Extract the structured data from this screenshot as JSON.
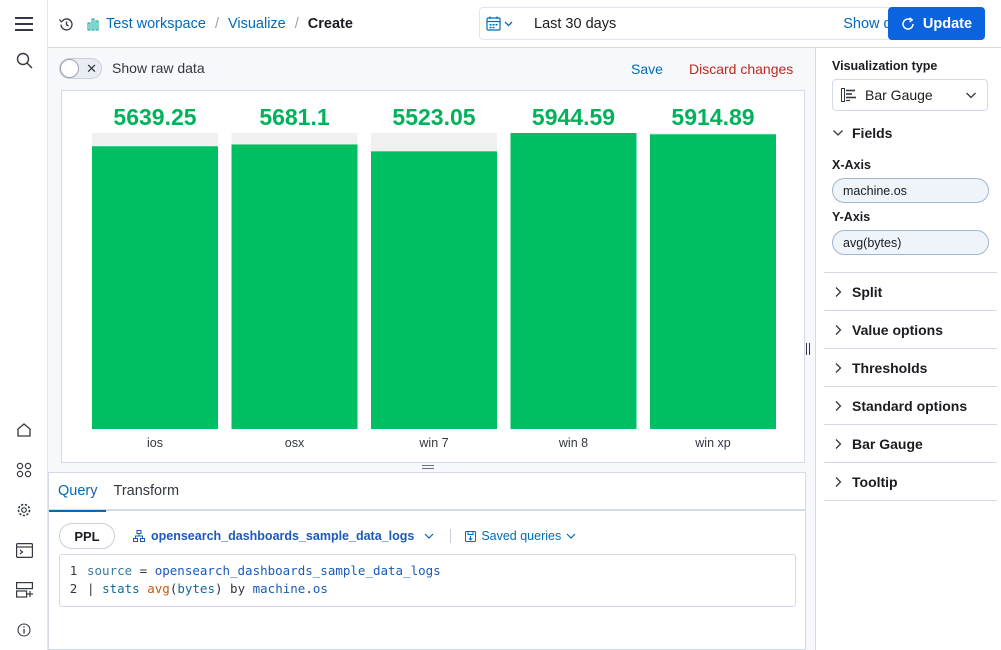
{
  "header": {
    "workspace": "Test workspace",
    "breadcrumb_visualize": "Visualize",
    "breadcrumb_current": "Create",
    "date_range": "Last 30 days",
    "show_dates": "Show dates",
    "update_label": "Update"
  },
  "toolbar": {
    "raw_data_label": "Show raw data",
    "save_label": "Save",
    "discard_label": "Discard changes"
  },
  "chart_data": {
    "type": "bar",
    "categories": [
      "ios",
      "osx",
      "win 7",
      "win 8",
      "win xp"
    ],
    "values": [
      5639.25,
      5681.1,
      5523.05,
      5944.59,
      5914.89
    ],
    "value_labels": [
      "5639.25",
      "5681.1",
      "5523.05",
      "5944.59",
      "5914.89"
    ],
    "max": 5944.59,
    "bar_color": "#00bf63",
    "track_color": "#f0f0f0",
    "value_color": "#00b35a"
  },
  "query": {
    "tabs": [
      "Query",
      "Transform"
    ],
    "language": "PPL",
    "dataset": "opensearch_dashboards_sample_data_logs",
    "saved_queries": "Saved queries",
    "lines": [
      {
        "num": "1",
        "parts": [
          [
            "kw",
            "source"
          ],
          [
            "plain",
            " = "
          ],
          [
            "fld",
            "opensearch_dashboards_sample_data_logs"
          ]
        ]
      },
      {
        "num": "2",
        "parts": [
          [
            "plain",
            "| "
          ],
          [
            "kw2",
            "stats"
          ],
          [
            "plain",
            " "
          ],
          [
            "fn",
            "avg"
          ],
          [
            "plain",
            "("
          ],
          [
            "kw2",
            "bytes"
          ],
          [
            "plain",
            ") "
          ],
          [
            "plain",
            "by "
          ],
          [
            "fld",
            "machine"
          ],
          [
            "plain",
            "."
          ],
          [
            "fld",
            "os"
          ]
        ]
      }
    ]
  },
  "sidebar": {
    "vis_type_label": "Visualization type",
    "vis_type_value": "Bar Gauge",
    "fields_label": "Fields",
    "x_axis_label": "X-Axis",
    "x_axis_value": "machine.os",
    "y_axis_label": "Y-Axis",
    "y_axis_value": "avg(bytes)",
    "sections": [
      "Split",
      "Value options",
      "Thresholds",
      "Standard options",
      "Bar Gauge",
      "Tooltip"
    ]
  }
}
